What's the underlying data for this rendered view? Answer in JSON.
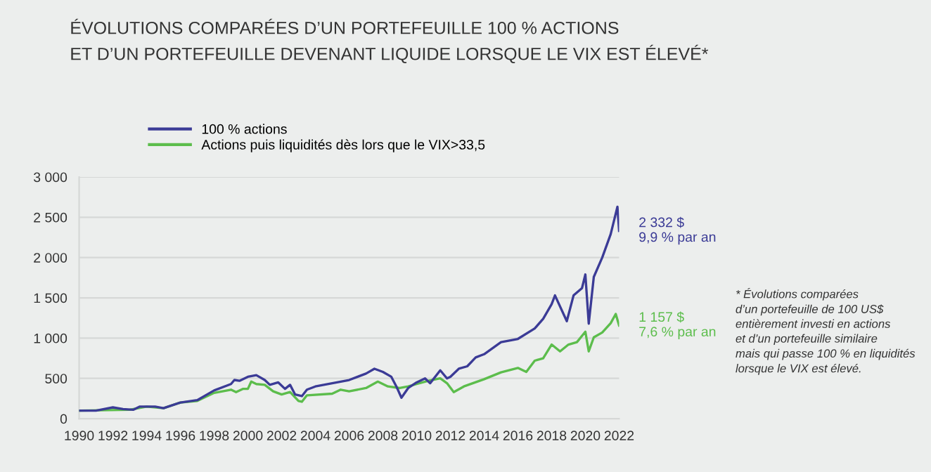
{
  "chart_data": {
    "type": "line",
    "title": "ÉVOLUTIONS COMPARÉES D’UN PORTEFEUILLE 100 % ACTIONS\nET D’UN PORTEFEUILLE DEVENANT LIQUIDE LORSQUE LE VIX EST ÉLEVÉ*",
    "series": [
      {
        "name": "100 % actions",
        "color": "#3b3b96",
        "x": [
          1990,
          1991,
          1992,
          1992.6,
          1993.2,
          1993.6,
          1994.5,
          1995,
          1996,
          1997,
          1998,
          1999,
          1999.2,
          1999.5,
          2000,
          2000.5,
          2001,
          2001.3,
          2001.8,
          2002.2,
          2002.5,
          2002.8,
          2003.2,
          2003.5,
          2004,
          2005,
          2006,
          2007,
          2007.5,
          2008,
          2008.5,
          2008.8,
          2009.1,
          2009.5,
          2010,
          2010.5,
          2010.8,
          2011.4,
          2011.8,
          2012,
          2012.5,
          2013,
          2013.5,
          2014,
          2015,
          2016,
          2017,
          2017.5,
          2018,
          2018.2,
          2018.9,
          2019.3,
          2019.8,
          2020,
          2020.2,
          2020.5,
          2021,
          2021.5,
          2021.9,
          2022
        ],
        "values": [
          100,
          100,
          140,
          120,
          110,
          150,
          150,
          130,
          200,
          230,
          350,
          430,
          480,
          470,
          520,
          540,
          480,
          420,
          450,
          370,
          420,
          300,
          280,
          360,
          400,
          440,
          480,
          560,
          620,
          580,
          520,
          400,
          260,
          380,
          450,
          500,
          440,
          600,
          500,
          520,
          620,
          650,
          760,
          800,
          950,
          990,
          1120,
          1240,
          1420,
          1530,
          1210,
          1530,
          1620,
          1790,
          1180,
          1760,
          2000,
          2290,
          2630,
          2332
        ]
      },
      {
        "name": "Actions puis liquidités dès lors que le VIX>33,5",
        "color": "#5cbd4c",
        "x": [
          1990,
          1993,
          1994,
          1995,
          1996,
          1997,
          1998,
          1999,
          1999.3,
          1999.7,
          2000,
          2000.2,
          2000.5,
          2001,
          2001.5,
          2002,
          2002.5,
          2003,
          2003.2,
          2003.5,
          2005,
          2005.5,
          2006,
          2007,
          2007.7,
          2008.3,
          2009,
          2009.5,
          2010,
          2010.7,
          2011.4,
          2011.8,
          2012.2,
          2012.8,
          2014,
          2015,
          2016,
          2016.5,
          2017,
          2017.5,
          2018,
          2018.5,
          2019,
          2019.5,
          2020,
          2020.2,
          2020.5,
          2021,
          2021.5,
          2021.8,
          2022
        ],
        "values": [
          100,
          110,
          150,
          130,
          200,
          220,
          320,
          360,
          330,
          370,
          370,
          460,
          430,
          420,
          340,
          300,
          330,
          220,
          210,
          290,
          310,
          360,
          340,
          380,
          460,
          400,
          380,
          400,
          430,
          470,
          500,
          440,
          330,
          400,
          490,
          575,
          630,
          580,
          720,
          750,
          920,
          835,
          920,
          950,
          1080,
          835,
          1010,
          1070,
          1185,
          1300,
          1157
        ]
      }
    ],
    "xlim": [
      1990,
      2022
    ],
    "xticks": [
      1990,
      1992,
      1994,
      1996,
      1998,
      2000,
      2002,
      2004,
      2006,
      2008,
      2010,
      2012,
      2014,
      2016,
      2018,
      2020,
      2022
    ],
    "ylim": [
      0,
      3000
    ],
    "yticks": [
      0,
      500,
      {
        "value": 1000,
        "label": "1 000"
      },
      {
        "value": 1500,
        "label": "1 500"
      },
      {
        "value": 2000,
        "label": "2 000"
      },
      {
        "value": 2500,
        "label": "2 500"
      },
      {
        "value": 3000,
        "label": "3 000"
      }
    ],
    "grid": "y",
    "legend": "top left",
    "annotations": [
      {
        "text": "2 332 $\n9,9 % par an",
        "x": 2022,
        "y": 2332
      },
      {
        "text": "1 157 $\n7,6 % par an",
        "x": 2022,
        "y": 1157
      },
      "* Évolutions comparées\nd’un portefeuille de 100 US$\nentièrement investi en actions\net d’un portefeuille similaire\nmais qui passe 100 % en liquidités\nlorsque le VIX est élevé."
    ]
  }
}
